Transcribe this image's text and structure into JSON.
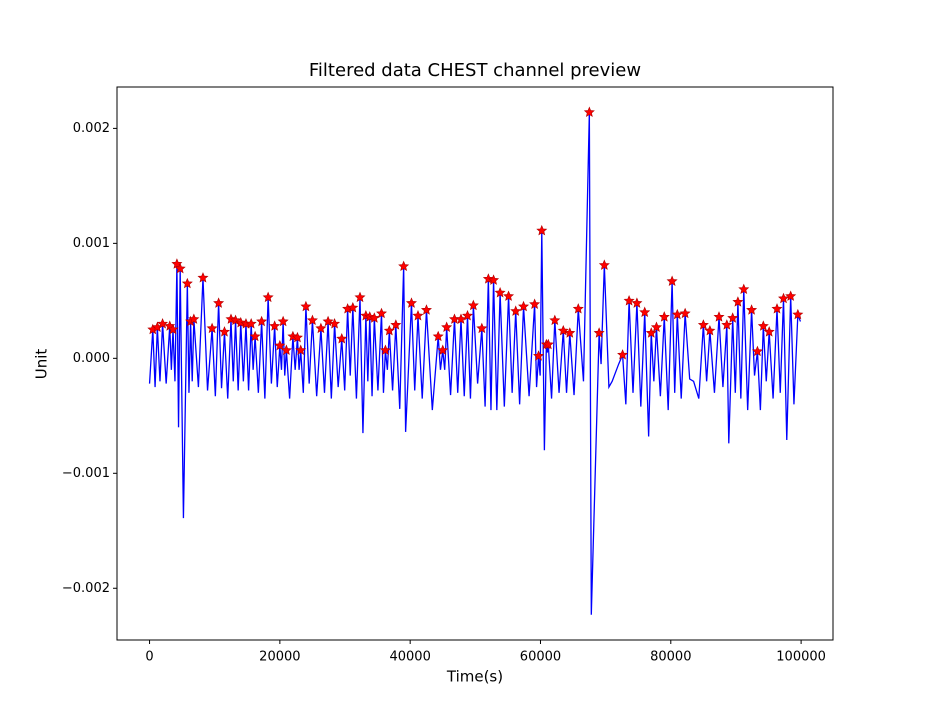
{
  "chart_data": {
    "type": "line",
    "title": "Filtered data CHEST channel preview",
    "xlabel": "Time(s)",
    "ylabel": "Unit",
    "xlim": [
      -4995,
      104895
    ],
    "ylim": [
      -0.00245,
      0.00236
    ],
    "xticks": [
      0,
      20000,
      40000,
      60000,
      80000,
      100000
    ],
    "yticks": [
      {
        "value": -0.002,
        "label": "−0.002"
      },
      {
        "value": -0.001,
        "label": "−0.001"
      },
      {
        "value": 0,
        "label": "0.000"
      },
      0.001,
      0.002
    ],
    "grid": false,
    "series": [
      {
        "style": "line",
        "color": "#0000ff",
        "x": [
          0,
          500,
          850,
          1200,
          1600,
          2000,
          2550,
          3100,
          3350,
          3600,
          3900,
          4200,
          4450,
          4700,
          5200,
          5800,
          6050,
          6300,
          6550,
          6800,
          7500,
          8200,
          8900,
          9600,
          10100,
          10600,
          11050,
          11500,
          12000,
          12500,
          12850,
          13200,
          13600,
          14000,
          14400,
          14800,
          15200,
          15600,
          15900,
          16200,
          16700,
          17200,
          17700,
          18200,
          18700,
          19200,
          19600,
          20000,
          20250,
          20500,
          20750,
          21000,
          21500,
          22000,
          22350,
          22700,
          22950,
          23200,
          23600,
          24000,
          24500,
          25000,
          25650,
          26300,
          26850,
          27400,
          27900,
          28400,
          28950,
          29500,
          29950,
          30400,
          30800,
          31200,
          31750,
          32300,
          32750,
          33200,
          33500,
          33800,
          34150,
          34500,
          35050,
          35600,
          35900,
          36200,
          36500,
          36800,
          37300,
          37800,
          38400,
          39000,
          39300,
          40200,
          40700,
          41200,
          41850,
          42500,
          43400,
          44300,
          44650,
          45000,
          45300,
          45600,
          46200,
          46800,
          47300,
          47800,
          48300,
          48800,
          49250,
          49700,
          50350,
          51000,
          51500,
          52000,
          52400,
          52800,
          53300,
          53800,
          54450,
          55100,
          55650,
          56200,
          56800,
          57400,
          58250,
          59100,
          59400,
          59700,
          59950,
          60200,
          60600,
          60900,
          61050,
          61200,
          61700,
          62200,
          62850,
          63500,
          64000,
          64500,
          65150,
          65800,
          66600,
          67500,
          67800,
          69000,
          69300,
          69800,
          70500,
          71000,
          72000,
          72600,
          73100,
          73600,
          74200,
          74800,
          75400,
          76000,
          76600,
          77000,
          77400,
          77800,
          78400,
          79000,
          79600,
          80200,
          80600,
          81000,
          81600,
          82200,
          82900,
          83500,
          84300,
          85000,
          85500,
          86000,
          86700,
          87400,
          88000,
          88600,
          88900,
          89500,
          89900,
          90300,
          90750,
          91200,
          91800,
          92400,
          92850,
          93300,
          93750,
          94200,
          94650,
          95100,
          95700,
          96300,
          96800,
          97300,
          97800,
          98400,
          98900,
          99500,
          99900
        ],
        "values": [
          -0.00022,
          0.00025,
          -0.00025,
          0.00027,
          -0.0002,
          0.0003,
          -0.00022,
          0.00028,
          -0.0001,
          0.00025,
          -0.0002,
          0.00082,
          -0.0006,
          0.00078,
          -0.00139,
          0.00065,
          -0.0003,
          0.00032,
          -0.0002,
          0.00034,
          -0.00025,
          0.0007,
          -0.00028,
          0.00026,
          -0.00033,
          0.00048,
          -0.00026,
          0.00023,
          -0.00035,
          0.00034,
          -0.0002,
          0.00033,
          -0.00028,
          0.00031,
          -0.0002,
          0.0003,
          -0.00028,
          0.0003,
          -0.0001,
          0.00019,
          -0.0003,
          0.00032,
          -0.00035,
          0.00053,
          -0.00022,
          0.00028,
          -0.00025,
          0.00011,
          -0.0001,
          0.00032,
          -0.00015,
          7e-05,
          -0.00035,
          0.00019,
          -0.0001,
          0.00018,
          -0.0001,
          7e-05,
          -0.0003,
          0.00045,
          -0.00022,
          0.00033,
          -0.00033,
          0.00026,
          -0.0003,
          0.00032,
          -0.00035,
          0.0003,
          -0.00025,
          0.00017,
          -0.00028,
          0.00043,
          -0.00015,
          0.00044,
          -0.00035,
          0.00053,
          -0.00065,
          0.00037,
          -0.0002,
          0.00036,
          -0.00033,
          0.00035,
          -0.00028,
          0.00039,
          -0.0003,
          7e-05,
          -0.0001,
          0.00024,
          -0.00028,
          0.00029,
          -0.00044,
          0.0008,
          -0.00064,
          0.00048,
          -0.00028,
          0.00037,
          -0.00035,
          0.00042,
          -0.00045,
          0.00019,
          -0.0001,
          7e-05,
          -0.0001,
          0.00027,
          -0.00032,
          0.00034,
          -0.0003,
          0.00034,
          -0.00033,
          0.00037,
          -0.00035,
          0.00046,
          -0.00022,
          0.00026,
          -0.00042,
          0.00069,
          -0.00045,
          0.00068,
          -0.00045,
          0.00057,
          -0.00042,
          0.00054,
          -0.0003,
          0.00041,
          -0.0004,
          0.00045,
          -0.00033,
          0.00047,
          -0.00025,
          2e-05,
          -0.00015,
          0.00111,
          -0.0008,
          0.00012,
          5e-05,
          0.00012,
          -0.00035,
          0.00033,
          -0.0003,
          0.00024,
          -0.0003,
          0.00022,
          -0.00032,
          0.00043,
          -0.0002,
          0.00214,
          -0.00223,
          0.00022,
          -5e-05,
          0.00081,
          -0.00025,
          -0.0002,
          -5e-05,
          3e-05,
          -0.0004,
          0.0005,
          -0.0003,
          0.00048,
          -0.00042,
          0.0004,
          -0.00068,
          0.00022,
          -0.0002,
          0.00027,
          -0.00033,
          0.00036,
          -0.00045,
          0.00067,
          -0.0003,
          0.00038,
          -0.00035,
          0.00039,
          -0.00018,
          -0.0002,
          -0.00035,
          0.00029,
          -0.0002,
          0.00024,
          -0.0003,
          0.00036,
          -0.00025,
          0.00029,
          -0.00074,
          0.00035,
          -0.0003,
          0.00049,
          -0.00035,
          0.0006,
          -0.00045,
          0.00042,
          -0.00015,
          6e-05,
          -0.00045,
          0.00028,
          -0.0002,
          0.00023,
          -0.00035,
          0.00043,
          -0.0003,
          0.00052,
          -0.00071,
          0.00054,
          -0.0004,
          0.00038,
          0.00032
        ]
      },
      {
        "style": "star",
        "color": "#ff0000",
        "x": [
          500,
          1200,
          2000,
          3100,
          3600,
          4200,
          4700,
          5800,
          6300,
          6800,
          8200,
          9600,
          10600,
          11500,
          12500,
          13200,
          14000,
          14800,
          15600,
          16200,
          17200,
          18200,
          19200,
          20000,
          20500,
          21000,
          22000,
          22700,
          23200,
          24000,
          25000,
          26300,
          27400,
          28400,
          29500,
          30400,
          31200,
          32300,
          33200,
          33800,
          34500,
          35600,
          36200,
          36800,
          37800,
          39000,
          40200,
          41200,
          42500,
          44300,
          45000,
          45600,
          46800,
          47800,
          48800,
          49700,
          51000,
          52000,
          52800,
          53800,
          55100,
          56200,
          57400,
          59100,
          59700,
          60200,
          60900,
          61200,
          62200,
          63500,
          64500,
          65800,
          67500,
          69000,
          69800,
          72600,
          73600,
          74800,
          76000,
          77000,
          77800,
          79000,
          80200,
          81000,
          82200,
          85000,
          86000,
          87400,
          88600,
          89500,
          90300,
          91200,
          92400,
          93300,
          94200,
          95100,
          96300,
          97300,
          98400,
          99500
        ],
        "values": [
          0.00025,
          0.00027,
          0.0003,
          0.00028,
          0.00025,
          0.00082,
          0.00078,
          0.00065,
          0.00032,
          0.00034,
          0.0007,
          0.00026,
          0.00048,
          0.00023,
          0.00034,
          0.00033,
          0.00031,
          0.0003,
          0.0003,
          0.00019,
          0.00032,
          0.00053,
          0.00028,
          0.00011,
          0.00032,
          7e-05,
          0.00019,
          0.00018,
          7e-05,
          0.00045,
          0.00033,
          0.00026,
          0.00032,
          0.0003,
          0.00017,
          0.00043,
          0.00044,
          0.00053,
          0.00037,
          0.00036,
          0.00035,
          0.00039,
          7e-05,
          0.00024,
          0.00029,
          0.0008,
          0.00048,
          0.00037,
          0.00042,
          0.00019,
          7e-05,
          0.00027,
          0.00034,
          0.00034,
          0.00037,
          0.00046,
          0.00026,
          0.00069,
          0.00068,
          0.00057,
          0.00054,
          0.00041,
          0.00045,
          0.00047,
          2e-05,
          0.00111,
          0.00012,
          0.00012,
          0.00033,
          0.00024,
          0.00022,
          0.00043,
          0.00214,
          0.00022,
          0.00081,
          3e-05,
          0.0005,
          0.00048,
          0.0004,
          0.00022,
          0.00027,
          0.00036,
          0.00067,
          0.00038,
          0.00039,
          0.00029,
          0.00024,
          0.00036,
          0.00029,
          0.00035,
          0.00049,
          0.0006,
          0.00042,
          6e-05,
          0.00028,
          0.00023,
          0.00043,
          0.00052,
          0.00054,
          0.00038
        ]
      }
    ]
  }
}
